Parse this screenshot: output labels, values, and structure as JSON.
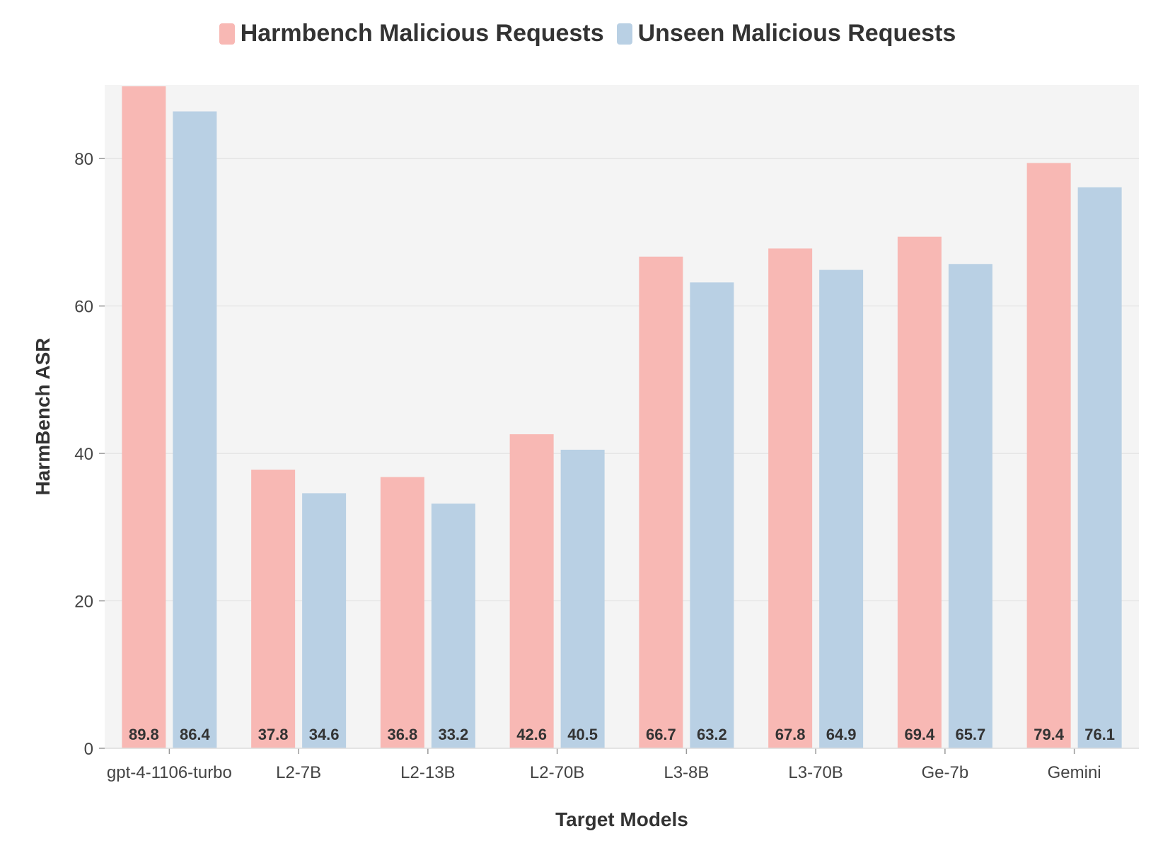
{
  "chart_data": {
    "type": "bar",
    "categories": [
      "gpt-4-1106-turbo",
      "L2-7B",
      "L2-13B",
      "L2-70B",
      "L3-8B",
      "L3-70B",
      "Ge-7b",
      "Gemini"
    ],
    "series": [
      {
        "name": "Harmbench Malicious Requests",
        "color": "#f8b8b4",
        "values": [
          89.8,
          37.8,
          36.8,
          42.6,
          66.7,
          67.8,
          69.4,
          79.4
        ],
        "labels": [
          "89.8",
          "37.8",
          "36.8",
          "42.6",
          "66.7",
          "67.8",
          "69.4",
          "79.4"
        ]
      },
      {
        "name": "Unseen Malicious Requests",
        "color": "#b9d0e4",
        "values": [
          86.4,
          34.6,
          33.2,
          40.5,
          63.2,
          64.9,
          65.7,
          76.1
        ],
        "labels": [
          "86.4",
          "34.6",
          "33.2",
          "40.5",
          "63.2",
          "64.9",
          "65.7",
          "76.1"
        ]
      }
    ],
    "title": "",
    "xlabel": "Target Models",
    "ylabel": "HarmBench ASR",
    "ylim": [
      0,
      90
    ],
    "yticks": [
      0,
      20,
      40,
      60,
      80
    ],
    "ytick_labels": [
      "0",
      "20",
      "40",
      "60",
      "80"
    ],
    "grid": true,
    "legend_position": "top-center",
    "plot_background": "#f4f4f4"
  }
}
